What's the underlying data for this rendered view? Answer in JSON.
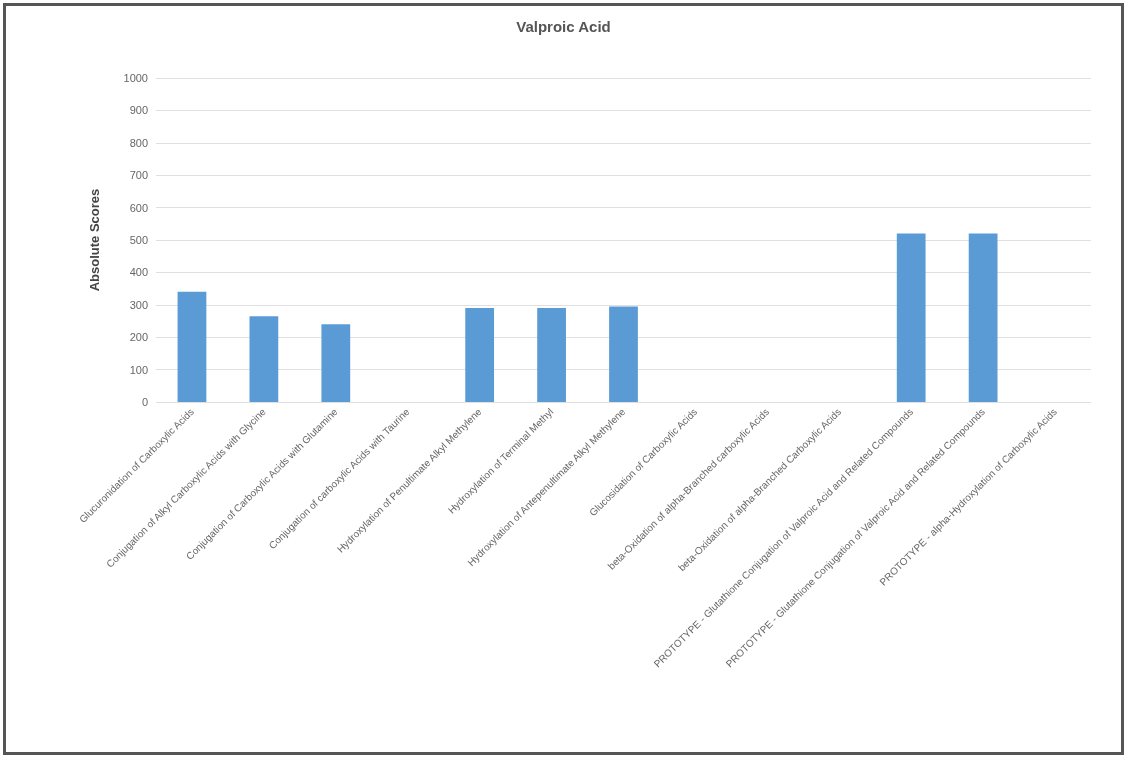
{
  "chart_data": {
    "type": "bar",
    "title": "Valproic Acid",
    "ylabel": "Absolute Scores",
    "categories": [
      "Glucuronidation of Carboxylic Acids",
      "Conjugation of Alkyl Carboxylic Acids with Glycine",
      "Conjugation of Carboxylic Acids with Glutamine",
      "Conjugation of carboxylic Acids with Taurine",
      "Hydroxylation of Penultimate Alkyl Methylene",
      "Hydroxylation of Terminal Methyl",
      "Hydroxylation of Antepenultimate Alkyl Methylene",
      "Glucosidation of Carboxylic Acids",
      "beta-Oxidation of alpha-Branched carboxylic Acids",
      "beta-Oxidation of alpha-Branched Carboxylic Acids",
      "PROTOTYPE - Glutathione Conjugation of Valproic Acid and Related Compounds",
      "PROTOTYPE - Glutathione Conjugation of Valproic Acid and Related Compounds",
      "PROTOTYPE - alpha-Hydroxylation of Carboxylic Acids"
    ],
    "values": [
      340,
      265,
      240,
      0,
      290,
      290,
      295,
      0,
      0,
      0,
      520,
      520,
      0
    ],
    "color": "#5b9bd5",
    "ylim": [
      0,
      1000
    ],
    "yticks": [
      0,
      100,
      200,
      300,
      400,
      500,
      600,
      700,
      800,
      900,
      1000
    ],
    "grid": "y"
  }
}
